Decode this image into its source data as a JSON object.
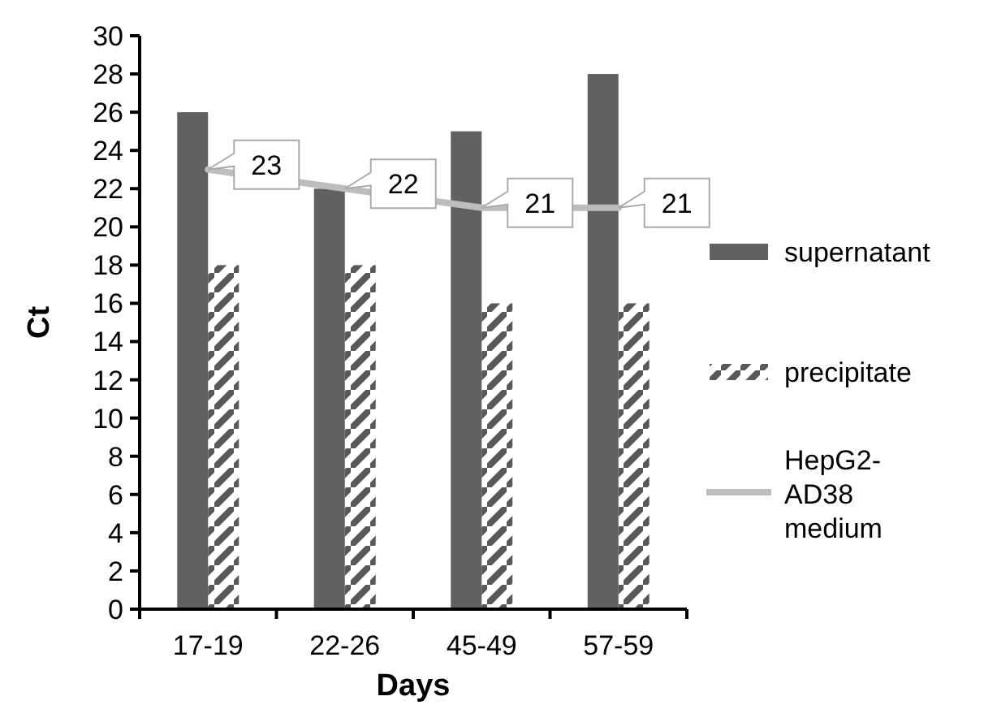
{
  "chart_data": {
    "type": "bar",
    "xlabel": "Days",
    "ylabel": "Ct",
    "categories": [
      "17-19",
      "22-26",
      "45-49",
      "57-59"
    ],
    "series": [
      {
        "name": "supernatant",
        "color": "#616161",
        "values": [
          26,
          22,
          25,
          28
        ]
      },
      {
        "name": "precipitate",
        "color": "#595959",
        "values": [
          18,
          18,
          16,
          16
        ]
      },
      {
        "name": "HepG2-AD38 medium",
        "type": "line",
        "color": "#bdbdbd",
        "values": [
          23,
          22,
          21,
          21
        ],
        "value_labels": [
          "23",
          "22",
          "21",
          "21"
        ]
      }
    ],
    "ylim": [
      0,
      30
    ],
    "yticks": [
      0,
      2,
      4,
      6,
      8,
      10,
      12,
      14,
      16,
      18,
      20,
      22,
      24,
      26,
      28,
      30
    ],
    "grid": false,
    "legend": "right",
    "marker": "none"
  }
}
